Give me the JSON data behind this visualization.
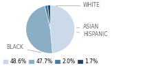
{
  "sizes": [
    48.6,
    47.7,
    2.0,
    1.7
  ],
  "colors": [
    "#ccd9e8",
    "#8aafc5",
    "#4a7a9b",
    "#1e3f5c"
  ],
  "legend_values": [
    "48.6%",
    "47.7%",
    "2.0%",
    "1.7%"
  ],
  "startangle": 90,
  "label_fontsize": 5.5,
  "text_color": "#666666",
  "line_color": "#aaaaaa"
}
